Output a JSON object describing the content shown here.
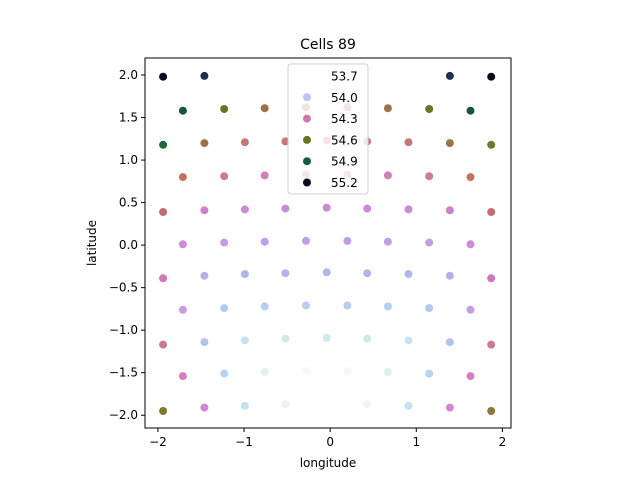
{
  "chart_data": {
    "type": "scatter",
    "title": "Cells 89",
    "xlabel": "longitude",
    "ylabel": "latitude",
    "xlim": [
      -2.15,
      2.1
    ],
    "ylim": [
      -2.15,
      2.2
    ],
    "xticks": [
      -2,
      -1,
      0,
      1,
      2
    ],
    "xtick_labels": [
      "−2",
      "−1",
      "0",
      "1",
      "2"
    ],
    "yticks": [
      -2.0,
      -1.5,
      -1.0,
      -0.5,
      0.0,
      0.5,
      1.0,
      1.5,
      2.0
    ],
    "ytick_labels": [
      "−2.0",
      "−1.5",
      "−1.0",
      "−0.5",
      "0.0",
      "0.5",
      "1.0",
      "1.5",
      "2.0"
    ],
    "grid": false,
    "legend_position": "top-center",
    "legend": [
      {
        "label": "53.7",
        "color": "#ffffff"
      },
      {
        "label": "54.0",
        "color": "#b7c8ee"
      },
      {
        "label": "54.3",
        "color": "#cc79a7"
      },
      {
        "label": "54.6",
        "color": "#6b7226"
      },
      {
        "label": "54.9",
        "color": "#155a44"
      },
      {
        "label": "55.2",
        "color": "#0d0a1c"
      }
    ],
    "points": [
      {
        "x": -1.94,
        "y": 1.98,
        "color": "#0b0915"
      },
      {
        "x": -1.46,
        "y": 1.99,
        "color": "#1e3050"
      },
      {
        "x": 1.39,
        "y": 1.99,
        "color": "#1e3050"
      },
      {
        "x": 1.87,
        "y": 1.98,
        "color": "#0b0915"
      },
      {
        "x": -1.71,
        "y": 1.58,
        "color": "#14563f"
      },
      {
        "x": -1.23,
        "y": 1.6,
        "color": "#6a7226"
      },
      {
        "x": -0.76,
        "y": 1.61,
        "color": "#9d7146"
      },
      {
        "x": -0.28,
        "y": 1.62,
        "color": "#bc7c63"
      },
      {
        "x": 0.2,
        "y": 1.62,
        "color": "#bc7c63"
      },
      {
        "x": 0.67,
        "y": 1.61,
        "color": "#9d7146"
      },
      {
        "x": 1.15,
        "y": 1.6,
        "color": "#6a7226"
      },
      {
        "x": 1.63,
        "y": 1.58,
        "color": "#14563f"
      },
      {
        "x": -1.94,
        "y": 1.18,
        "color": "#1b6a3b"
      },
      {
        "x": -1.46,
        "y": 1.2,
        "color": "#9a7446"
      },
      {
        "x": -0.99,
        "y": 1.21,
        "color": "#c57679"
      },
      {
        "x": -0.52,
        "y": 1.22,
        "color": "#c8787e"
      },
      {
        "x": -0.04,
        "y": 1.23,
        "color": "#c8787e"
      },
      {
        "x": 0.43,
        "y": 1.22,
        "color": "#c8787e"
      },
      {
        "x": 0.91,
        "y": 1.21,
        "color": "#c57679"
      },
      {
        "x": 1.39,
        "y": 1.2,
        "color": "#9a7446"
      },
      {
        "x": 1.87,
        "y": 1.18,
        "color": "#6f7a2b"
      },
      {
        "x": -1.71,
        "y": 0.8,
        "color": "#c07362"
      },
      {
        "x": -1.23,
        "y": 0.81,
        "color": "#cd7a9b"
      },
      {
        "x": -0.76,
        "y": 0.82,
        "color": "#d17fb4"
      },
      {
        "x": -0.28,
        "y": 0.83,
        "color": "#d17fb4"
      },
      {
        "x": 0.2,
        "y": 0.83,
        "color": "#d17fb4"
      },
      {
        "x": 0.67,
        "y": 0.82,
        "color": "#d17fb4"
      },
      {
        "x": 1.15,
        "y": 0.81,
        "color": "#cd7a9b"
      },
      {
        "x": 1.63,
        "y": 0.8,
        "color": "#c07362"
      },
      {
        "x": -1.94,
        "y": 0.39,
        "color": "#c26c73"
      },
      {
        "x": -1.46,
        "y": 0.41,
        "color": "#cc82ca"
      },
      {
        "x": -0.99,
        "y": 0.42,
        "color": "#c98ad6"
      },
      {
        "x": -0.52,
        "y": 0.43,
        "color": "#c98ad6"
      },
      {
        "x": -0.04,
        "y": 0.44,
        "color": "#c98ad6"
      },
      {
        "x": 0.43,
        "y": 0.43,
        "color": "#c98ad6"
      },
      {
        "x": 0.91,
        "y": 0.42,
        "color": "#c98ad6"
      },
      {
        "x": 1.39,
        "y": 0.41,
        "color": "#cc82ca"
      },
      {
        "x": 1.87,
        "y": 0.39,
        "color": "#c26c73"
      },
      {
        "x": -1.71,
        "y": 0.01,
        "color": "#cc8cd6"
      },
      {
        "x": -1.23,
        "y": 0.03,
        "color": "#c49be4"
      },
      {
        "x": -0.76,
        "y": 0.04,
        "color": "#c09ee6"
      },
      {
        "x": -0.28,
        "y": 0.05,
        "color": "#c09ee6"
      },
      {
        "x": 0.2,
        "y": 0.05,
        "color": "#c09ee6"
      },
      {
        "x": 0.67,
        "y": 0.04,
        "color": "#c09ee6"
      },
      {
        "x": 1.15,
        "y": 0.03,
        "color": "#c49be4"
      },
      {
        "x": 1.63,
        "y": 0.01,
        "color": "#cc8cd6"
      },
      {
        "x": -1.94,
        "y": -0.39,
        "color": "#d079b8"
      },
      {
        "x": -1.46,
        "y": -0.36,
        "color": "#b6b0ea"
      },
      {
        "x": -0.99,
        "y": -0.34,
        "color": "#b0b6ec"
      },
      {
        "x": -0.52,
        "y": -0.33,
        "color": "#b0b6ec"
      },
      {
        "x": -0.04,
        "y": -0.32,
        "color": "#b0b6ec"
      },
      {
        "x": 0.43,
        "y": -0.33,
        "color": "#b0b6ec"
      },
      {
        "x": 0.91,
        "y": -0.34,
        "color": "#b0b6ec"
      },
      {
        "x": 1.39,
        "y": -0.36,
        "color": "#b6b0ea"
      },
      {
        "x": 1.87,
        "y": -0.39,
        "color": "#d079b8"
      },
      {
        "x": -1.71,
        "y": -0.76,
        "color": "#c39fe4"
      },
      {
        "x": -1.23,
        "y": -0.74,
        "color": "#b1c9ee"
      },
      {
        "x": -0.76,
        "y": -0.72,
        "color": "#b6cff1"
      },
      {
        "x": -0.28,
        "y": -0.71,
        "color": "#b6cff1"
      },
      {
        "x": 0.2,
        "y": -0.71,
        "color": "#b6cff1"
      },
      {
        "x": 0.67,
        "y": -0.72,
        "color": "#b6cff1"
      },
      {
        "x": 1.15,
        "y": -0.74,
        "color": "#b1c9ee"
      },
      {
        "x": 1.63,
        "y": -0.76,
        "color": "#c39fe4"
      },
      {
        "x": -1.94,
        "y": -1.17,
        "color": "#c97a95"
      },
      {
        "x": -1.46,
        "y": -1.14,
        "color": "#b3c2ee"
      },
      {
        "x": -0.99,
        "y": -1.12,
        "color": "#c6e4ee"
      },
      {
        "x": -0.52,
        "y": -1.1,
        "color": "#cdeae8"
      },
      {
        "x": -0.04,
        "y": -1.09,
        "color": "#cdeae8"
      },
      {
        "x": 0.43,
        "y": -1.1,
        "color": "#cdeae8"
      },
      {
        "x": 0.91,
        "y": -1.12,
        "color": "#c6e4ee"
      },
      {
        "x": 1.39,
        "y": -1.14,
        "color": "#b3c2ee"
      },
      {
        "x": 1.87,
        "y": -1.17,
        "color": "#c97a95"
      },
      {
        "x": -1.71,
        "y": -1.54,
        "color": "#d57ec2"
      },
      {
        "x": -1.23,
        "y": -1.51,
        "color": "#b6d4f0"
      },
      {
        "x": -0.76,
        "y": -1.49,
        "color": "#def2ea"
      },
      {
        "x": -0.28,
        "y": -1.48,
        "color": "#f2fbf8"
      },
      {
        "x": 0.2,
        "y": -1.48,
        "color": "#f2fbf8"
      },
      {
        "x": 0.67,
        "y": -1.49,
        "color": "#def2ea"
      },
      {
        "x": 1.15,
        "y": -1.51,
        "color": "#b6d4f0"
      },
      {
        "x": 1.63,
        "y": -1.54,
        "color": "#d57ec2"
      },
      {
        "x": -1.94,
        "y": -1.95,
        "color": "#7c7a33"
      },
      {
        "x": -1.46,
        "y": -1.91,
        "color": "#cd87d3"
      },
      {
        "x": -0.99,
        "y": -1.89,
        "color": "#c5e3ef"
      },
      {
        "x": -0.52,
        "y": -1.87,
        "color": "#e9f4ef"
      },
      {
        "x": -0.04,
        "y": -1.86,
        "color": "#ffffff"
      },
      {
        "x": 0.43,
        "y": -1.87,
        "color": "#eef8f3"
      },
      {
        "x": 0.91,
        "y": -1.89,
        "color": "#c5e3ef"
      },
      {
        "x": 1.39,
        "y": -1.91,
        "color": "#cd87d3"
      },
      {
        "x": 1.87,
        "y": -1.95,
        "color": "#8b7a3c"
      }
    ]
  }
}
